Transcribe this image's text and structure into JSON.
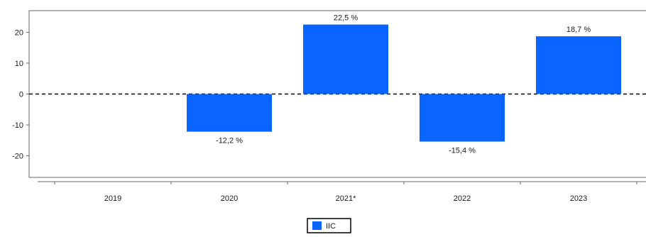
{
  "chart_data": {
    "type": "bar",
    "categories": [
      "2019",
      "2020",
      "2021*",
      "2022",
      "2023"
    ],
    "series": [
      {
        "name": "IIC",
        "values": [
          null,
          -12.2,
          22.5,
          -15.4,
          18.7
        ],
        "data_labels": [
          "",
          "-12,2 %",
          "22,5 %",
          "-15,4 %",
          "18,7 %"
        ]
      }
    ],
    "y_ticks": [
      20,
      10,
      0,
      -10,
      -20
    ],
    "y_tick_labels": [
      "20",
      "10",
      "0",
      "-10",
      "-20"
    ],
    "ylim": [
      -27,
      27
    ],
    "title": "",
    "xlabel": "",
    "ylabel": "",
    "grid": false,
    "zero_line": "dashed",
    "legend": "bottom-center",
    "colors": {
      "bar": "#0a64ff",
      "axis": "#666666",
      "zero_line": "#000000",
      "legend_border": "#000000"
    }
  }
}
